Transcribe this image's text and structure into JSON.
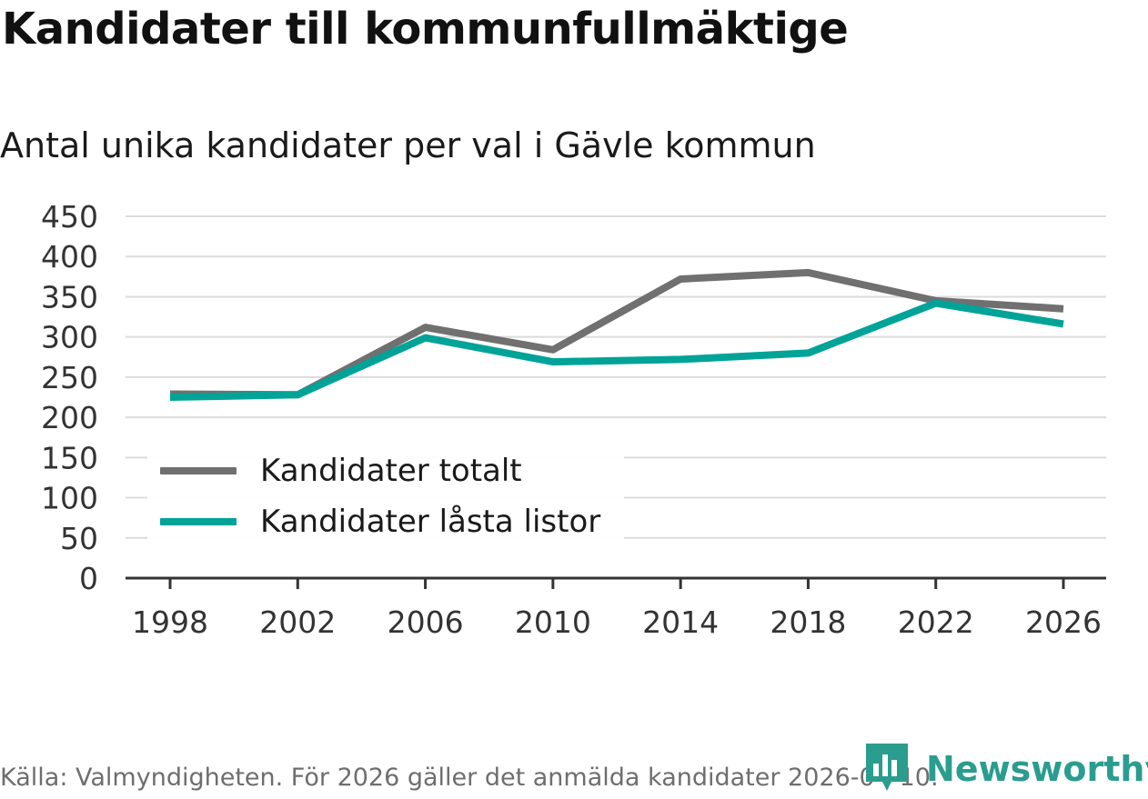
{
  "title": "Kandidater till kommunfullmäktige",
  "subtitle": "Antal unika kandidater per val i Gävle kommun",
  "source": "Källa: Valmyndigheten. För 2026 gäller det anmälda kandidater 2026-04-10.",
  "brand": {
    "name": "Newsworthy",
    "icon": "bar-chart-speech-bubble-icon",
    "color": "#2a9d8f"
  },
  "chart_data": {
    "type": "line",
    "x": [
      1998,
      2002,
      2006,
      2010,
      2014,
      2018,
      2022,
      2026
    ],
    "series": [
      {
        "name": "Kandidater totalt",
        "color": "#707070",
        "values": [
          229,
          228,
          312,
          284,
          372,
          380,
          345,
          335
        ]
      },
      {
        "name": "Kandidater låsta listor",
        "color": "#00a398",
        "values": [
          225,
          228,
          299,
          269,
          272,
          280,
          342,
          316
        ]
      }
    ],
    "ylim": [
      0,
      450
    ],
    "yticks": [
      0,
      50,
      100,
      150,
      200,
      250,
      300,
      350,
      400,
      450
    ],
    "xticks": [
      1998,
      2002,
      2006,
      2010,
      2014,
      2018,
      2022,
      2026
    ],
    "grid": true,
    "legend_position": "bottom-left",
    "xlabel": "",
    "ylabel": ""
  }
}
